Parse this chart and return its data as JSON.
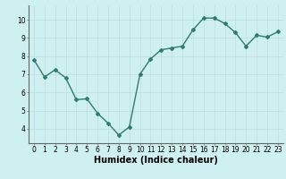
{
  "x": [
    0,
    1,
    2,
    3,
    4,
    5,
    6,
    7,
    8,
    9,
    10,
    11,
    12,
    13,
    14,
    15,
    16,
    17,
    18,
    19,
    20,
    21,
    22,
    23
  ],
  "y": [
    7.8,
    6.85,
    7.25,
    6.8,
    5.6,
    5.65,
    4.85,
    4.3,
    3.65,
    4.1,
    7.0,
    7.85,
    8.35,
    8.45,
    8.55,
    9.45,
    10.1,
    10.1,
    9.8,
    9.3,
    8.55,
    9.15,
    9.05,
    9.35
  ],
  "line_color": "#2e7d6e",
  "marker": "D",
  "marker_size": 2,
  "background_color": "#cff0f0",
  "grid_color": "#c0dcdc",
  "xlabel": "Humidex (Indice chaleur)",
  "ylim": [
    3.2,
    10.8
  ],
  "yticks": [
    4,
    5,
    6,
    7,
    8,
    9,
    10
  ],
  "xticks": [
    0,
    1,
    2,
    3,
    4,
    5,
    6,
    7,
    8,
    9,
    10,
    11,
    12,
    13,
    14,
    15,
    16,
    17,
    18,
    19,
    20,
    21,
    22,
    23
  ],
  "tick_fontsize": 5.5,
  "xlabel_fontsize": 7,
  "linewidth": 1.0
}
